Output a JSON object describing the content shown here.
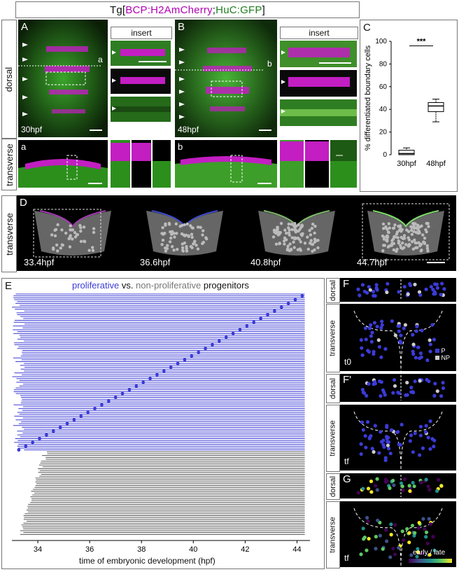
{
  "figure_title": {
    "prefix": "Tg[",
    "part1": "BCP:H2AmCherry",
    "sep": ";",
    "part2": "HuC:GFP",
    "suffix": "]"
  },
  "side_labels": {
    "dorsal": "dorsal",
    "transverse": "transverse"
  },
  "panels": {
    "A": "A",
    "B": "B",
    "a": "a",
    "b": "b",
    "C": "C",
    "D": "D",
    "E": "E",
    "F": "F",
    "Fp": "F'",
    "G": "G"
  },
  "insert_label": "insert",
  "timepoints": {
    "A": "30hpf",
    "B": "48hpf"
  },
  "panel_C": {
    "ylabel": "% differentiated boundary cells",
    "categories": [
      "30hpf",
      "48hpf"
    ],
    "yticks": [
      "0",
      "20",
      "40",
      "60",
      "80",
      "100"
    ],
    "significance": "***"
  },
  "panel_D_times": [
    "33.4hpf",
    "36.6hpf",
    "40.8hpf",
    "44.7hpf"
  ],
  "panel_E": {
    "title_prolif": "proliferative",
    "title_vs": " vs. ",
    "title_nonprolif": "non-proliferative",
    "title_rest": " progenitors",
    "xticks": [
      "34",
      "36",
      "38",
      "40",
      "42",
      "44"
    ],
    "xlabel": "time of embryonic development (hpf)"
  },
  "panel_F": {
    "t0": "t0",
    "tf": "tf",
    "legend_P": "P",
    "legend_NP": "NP"
  },
  "panel_G": {
    "tf": "tf",
    "colorbar_label": "early / late"
  },
  "colors": {
    "magenta": "#b300b3",
    "green": "#1f7d1f",
    "prolif": "#3b3bd6",
    "nonprolif": "#555555"
  },
  "chart_data": [
    {
      "type": "box",
      "categories": [
        "30hpf",
        "48hpf"
      ],
      "series": [
        {
          "values_summary": {
            "min": 0,
            "q1": 0,
            "median": 1,
            "q3": 4,
            "max": 6
          }
        },
        {
          "values_summary": {
            "min": 29,
            "q1": 38,
            "median": 43,
            "q3": 46,
            "max": 49
          }
        }
      ],
      "ylabel": "% differentiated boundary cells",
      "ylim": [
        0,
        100
      ],
      "annotation": "***"
    },
    {
      "type": "line",
      "xlabel": "time of embryonic development (hpf)",
      "xlim": [
        33,
        44.5
      ],
      "xticks": [
        34,
        36,
        38,
        40,
        42,
        44
      ],
      "series": [
        {
          "name": "proliferative",
          "color": "#3b3bd6",
          "count": 84
        },
        {
          "name": "non-proliferative",
          "color": "#555555",
          "count": 45
        }
      ]
    }
  ]
}
